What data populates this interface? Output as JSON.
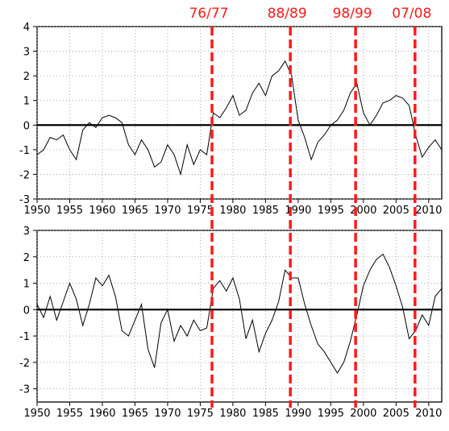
{
  "regime_labels": [
    "76/77",
    "88/89",
    "98/99",
    "07/08"
  ],
  "colors": {
    "series": "#000000",
    "regime_shift": "#ff1a1a",
    "grid": "#9a9a9a",
    "zero": "#000000"
  },
  "chart_data": [
    {
      "type": "line",
      "title": "",
      "xlabel": "",
      "ylabel": "",
      "xlim": [
        1950,
        2012
      ],
      "ylim": [
        -3,
        4
      ],
      "yticks": [
        -3,
        -2,
        -1,
        0,
        1,
        2,
        3,
        4
      ],
      "xticks": [
        1950,
        1955,
        1960,
        1965,
        1970,
        1975,
        1980,
        1985,
        1990,
        1995,
        2000,
        2005,
        2010
      ],
      "grid": "dotted",
      "zero_line": true,
      "regime_shifts": [
        1976.8,
        1988.8,
        1998.8,
        2007.9
      ],
      "series": [
        {
          "x": [
            1950,
            1951,
            1952,
            1953,
            1954,
            1955,
            1956,
            1957,
            1958,
            1959,
            1960,
            1961,
            1962,
            1963,
            1964,
            1965,
            1966,
            1967,
            1968,
            1969,
            1970,
            1971,
            1972,
            1973,
            1974,
            1975,
            1976,
            1977,
            1978,
            1979,
            1980,
            1981,
            1982,
            1983,
            1984,
            1985,
            1986,
            1987,
            1988,
            1989,
            1990,
            1991,
            1992,
            1993,
            1994,
            1995,
            1996,
            1997,
            1998,
            1999,
            2000,
            2001,
            2002,
            2003,
            2004,
            2005,
            2006,
            2007,
            2008,
            2009,
            2010,
            2011,
            2012
          ],
          "values": [
            -1.2,
            -1.0,
            -0.5,
            -0.6,
            -0.4,
            -1.0,
            -1.4,
            -0.2,
            0.1,
            -0.1,
            0.3,
            0.4,
            0.3,
            0.1,
            -0.8,
            -1.2,
            -0.6,
            -1.0,
            -1.7,
            -1.5,
            -0.8,
            -1.2,
            -2.0,
            -0.8,
            -1.6,
            -1.0,
            -1.2,
            0.5,
            0.3,
            0.7,
            1.2,
            0.4,
            0.6,
            1.3,
            1.7,
            1.2,
            2.0,
            2.2,
            2.6,
            2.0,
            0.2,
            -0.5,
            -1.4,
            -0.7,
            -0.4,
            0.0,
            0.2,
            0.6,
            1.3,
            1.7,
            0.5,
            0.0,
            0.4,
            0.9,
            1.0,
            1.2,
            1.1,
            0.8,
            -0.4,
            -1.3,
            -0.9,
            -0.6,
            -1.0
          ]
        }
      ]
    },
    {
      "type": "line",
      "title": "",
      "xlabel": "",
      "ylabel": "",
      "xlim": [
        1950,
        2012
      ],
      "ylim": [
        -3.5,
        3
      ],
      "yticks": [
        -3,
        -2,
        -1,
        0,
        1,
        2,
        3
      ],
      "xticks": [
        1950,
        1955,
        1960,
        1965,
        1970,
        1975,
        1980,
        1985,
        1990,
        1995,
        2000,
        2005,
        2010
      ],
      "grid": "dotted",
      "zero_line": true,
      "regime_shifts": [
        1976.8,
        1988.8,
        1998.8,
        2007.9
      ],
      "series": [
        {
          "x": [
            1950,
            1951,
            1952,
            1953,
            1954,
            1955,
            1956,
            1957,
            1958,
            1959,
            1960,
            1961,
            1962,
            1963,
            1964,
            1965,
            1966,
            1967,
            1968,
            1969,
            1970,
            1971,
            1972,
            1973,
            1974,
            1975,
            1976,
            1977,
            1978,
            1979,
            1980,
            1981,
            1982,
            1983,
            1984,
            1985,
            1986,
            1987,
            1988,
            1989,
            1990,
            1991,
            1992,
            1993,
            1994,
            1995,
            1996,
            1997,
            1998,
            1999,
            2000,
            2001,
            2002,
            2003,
            2004,
            2005,
            2006,
            2007,
            2008,
            2009,
            2010,
            2011,
            2012
          ],
          "values": [
            0.2,
            -0.3,
            0.5,
            -0.4,
            0.3,
            1.0,
            0.4,
            -0.6,
            0.2,
            1.2,
            0.9,
            1.3,
            0.5,
            -0.8,
            -1.0,
            -0.4,
            0.2,
            -1.5,
            -2.2,
            -0.5,
            0.0,
            -1.2,
            -0.6,
            -1.0,
            -0.4,
            -0.8,
            -0.7,
            0.8,
            1.1,
            0.7,
            1.2,
            0.4,
            -1.1,
            -0.4,
            -1.6,
            -0.9,
            -0.4,
            0.3,
            1.5,
            1.2,
            1.2,
            0.2,
            -0.6,
            -1.3,
            -1.6,
            -2.0,
            -2.4,
            -2.0,
            -1.2,
            -0.2,
            0.9,
            1.5,
            1.9,
            2.1,
            1.6,
            0.9,
            0.1,
            -1.1,
            -0.8,
            -0.2,
            -0.6,
            0.5,
            0.8
          ]
        }
      ]
    }
  ]
}
